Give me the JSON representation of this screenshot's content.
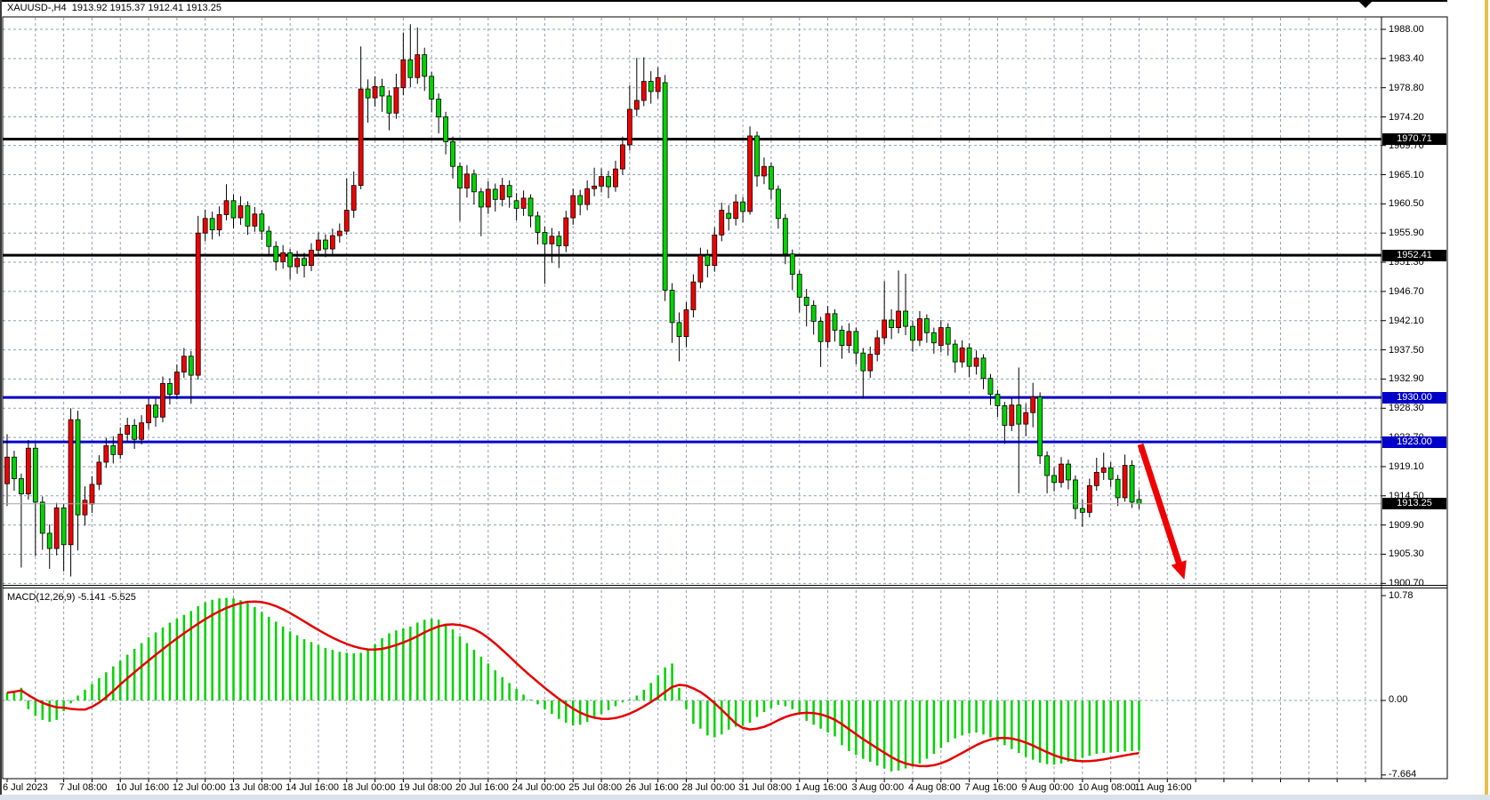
{
  "window": {
    "title": "XAUUSD-,H4  1913.92 1915.37 1912.41 1913.25"
  },
  "indicator": {
    "label": "MACD(12,26,9) -5.141 -5.525"
  },
  "macd_axis": {
    "top": "10.78",
    "zero": "0.00",
    "bottom": "-7.664"
  },
  "price_axis": {
    "labels": [
      "1988.00",
      "1983.40",
      "1978.80",
      "1974.20",
      "1969.70",
      "1965.10",
      "1960.50",
      "1955.90",
      "1951.30",
      "1946.70",
      "1942.10",
      "1937.50",
      "1932.90",
      "1928.30",
      "1923.70",
      "1919.10",
      "1914.50",
      "1909.90",
      "1905.30",
      "1900.70"
    ],
    "badges": [
      {
        "label": "1970.71",
        "price": 1970.71,
        "style": "black"
      },
      {
        "label": "1952.41",
        "price": 1952.41,
        "style": "black"
      },
      {
        "label": "1930.00",
        "price": 1930.0,
        "style": "blue"
      },
      {
        "label": "1923.00",
        "price": 1923.0,
        "style": "blue"
      },
      {
        "label": "1913.25",
        "price": 1913.25,
        "style": "black"
      }
    ]
  },
  "time_axis": {
    "labels": [
      "6 Jul 2023",
      "7 Jul 08:00",
      "10 Jul 16:00",
      "12 Jul 00:00",
      "13 Jul 08:00",
      "14 Jul 16:00",
      "18 Jul 00:00",
      "19 Jul 08:00",
      "20 Jul 16:00",
      "24 Jul 00:00",
      "25 Jul 08:00",
      "26 Jul 16:00",
      "28 Jul 00:00",
      "31 Jul 08:00",
      "1 Aug 16:00",
      "3 Aug 00:00",
      "4 Aug 08:00",
      "7 Aug 16:00",
      "9 Aug 00:00",
      "10 Aug 08:00",
      "11 Aug 16:00"
    ],
    "label_every_bars": 8
  },
  "colors": {
    "bull": "#f20000",
    "bear": "#00d400",
    "wick": "#000000",
    "grid": "#8fa0b4",
    "hline_black": "#000000",
    "hline_blue": "#0000c8",
    "macd_bar": "#00d400",
    "signal": "#e60000",
    "current_line": "#a6a6a6",
    "arrow": "#f00000",
    "badge_black": "#000000",
    "badge_blue": "#0000c8",
    "status_strip": "#d9e1eb",
    "scroll_strip": "#e6c04a"
  },
  "chart_data": {
    "type": "candlestick+macd",
    "symbol": "XAUUSD-",
    "timeframe": "H4",
    "current_quote": {
      "open": "1913.92",
      "high": "1915.37",
      "low": "1912.41",
      "close": "1913.25"
    },
    "price_range_shown": [
      1900.7,
      1988.0
    ],
    "macd_range_shown": [
      -7.664,
      10.78
    ],
    "hlines": [
      {
        "price": 1970.71,
        "color": "#000000",
        "width": 3
      },
      {
        "price": 1952.41,
        "color": "#000000",
        "width": 3
      },
      {
        "price": 1930.0,
        "color": "#0000c8",
        "width": 3
      },
      {
        "price": 1923.0,
        "color": "#0000c8",
        "width": 3
      }
    ],
    "current_price": 1913.25,
    "annotations": [
      {
        "type": "arrow",
        "color": "#f00000",
        "from": {
          "bar": 160.2,
          "price": 1922.6
        },
        "to": {
          "bar": 166.4,
          "price": 1901.3
        }
      }
    ],
    "ohlc": [
      [
        1916.4,
        1924.2,
        1912.9,
        1920.6
      ],
      [
        1920.6,
        1921.6,
        1915.3,
        1917.2
      ],
      [
        1917.2,
        1918.0,
        1903.2,
        1914.8
      ],
      [
        1914.8,
        1923.3,
        1913.9,
        1922.0
      ],
      [
        1922.0,
        1922.8,
        1905.0,
        1913.5
      ],
      [
        1913.5,
        1914.4,
        1906.0,
        1908.6
      ],
      [
        1908.6,
        1910.0,
        1903.0,
        1906.2
      ],
      [
        1906.2,
        1913.4,
        1905.1,
        1912.6
      ],
      [
        1912.6,
        1913.3,
        1902.6,
        1906.8
      ],
      [
        1906.8,
        1928.3,
        1901.8,
        1926.5
      ],
      [
        1926.5,
        1927.9,
        1905.9,
        1911.5
      ],
      [
        1911.5,
        1916.0,
        1909.8,
        1913.8
      ],
      [
        1913.2,
        1917.6,
        1911.8,
        1916.3
      ],
      [
        1916.3,
        1920.9,
        1915.4,
        1919.8
      ],
      [
        1919.8,
        1923.6,
        1918.9,
        1922.4
      ],
      [
        1922.4,
        1923.9,
        1919.6,
        1921.0
      ],
      [
        1921.0,
        1925.3,
        1920.3,
        1924.2
      ],
      [
        1924.2,
        1926.8,
        1923.1,
        1925.6
      ],
      [
        1925.6,
        1926.6,
        1921.9,
        1923.4
      ],
      [
        1923.4,
        1927.2,
        1922.6,
        1926.0
      ],
      [
        1926.0,
        1929.9,
        1925.0,
        1928.8
      ],
      [
        1928.8,
        1929.8,
        1925.4,
        1926.9
      ],
      [
        1926.9,
        1933.3,
        1926.1,
        1932.2
      ],
      [
        1932.2,
        1933.0,
        1928.9,
        1930.5
      ],
      [
        1930.5,
        1935.2,
        1929.7,
        1934.0
      ],
      [
        1934.0,
        1937.8,
        1933.1,
        1936.5
      ],
      [
        1936.5,
        1937.3,
        1929.0,
        1933.5
      ],
      [
        1933.5,
        1958.6,
        1932.8,
        1955.9
      ],
      [
        1955.9,
        1959.6,
        1954.6,
        1958.2
      ],
      [
        1958.2,
        1959.3,
        1954.9,
        1956.4
      ],
      [
        1956.4,
        1960.1,
        1955.4,
        1958.8
      ],
      [
        1958.8,
        1963.6,
        1957.9,
        1961.0
      ],
      [
        1961.0,
        1962.0,
        1956.6,
        1958.3
      ],
      [
        1958.3,
        1961.7,
        1957.2,
        1960.2
      ],
      [
        1960.2,
        1960.9,
        1955.6,
        1957.0
      ],
      [
        1957.0,
        1960.0,
        1956.1,
        1958.9
      ],
      [
        1958.9,
        1959.5,
        1954.8,
        1956.2
      ],
      [
        1956.2,
        1957.0,
        1952.4,
        1953.8
      ],
      [
        1953.8,
        1954.6,
        1950.0,
        1951.4
      ],
      [
        1951.4,
        1954.0,
        1950.3,
        1952.8
      ],
      [
        1952.8,
        1953.4,
        1948.6,
        1950.6
      ],
      [
        1950.6,
        1953.1,
        1949.5,
        1951.9
      ],
      [
        1951.9,
        1952.8,
        1948.9,
        1950.8
      ],
      [
        1950.8,
        1954.3,
        1949.9,
        1953.2
      ],
      [
        1953.2,
        1956.0,
        1952.3,
        1954.8
      ],
      [
        1954.8,
        1955.7,
        1952.1,
        1953.4
      ],
      [
        1953.4,
        1956.6,
        1952.6,
        1955.5
      ],
      [
        1955.5,
        1957.4,
        1954.4,
        1956.2
      ],
      [
        1956.2,
        1964.5,
        1955.6,
        1959.5
      ],
      [
        1959.5,
        1965.6,
        1958.3,
        1963.4
      ],
      [
        1963.4,
        1985.3,
        1962.8,
        1978.6
      ],
      [
        1978.6,
        1980.1,
        1973.3,
        1977.2
      ],
      [
        1977.2,
        1980.6,
        1975.8,
        1979.0
      ],
      [
        1979.0,
        1980.2,
        1975.0,
        1977.5
      ],
      [
        1977.5,
        1978.4,
        1972.1,
        1974.8
      ],
      [
        1974.8,
        1981.0,
        1973.9,
        1978.8
      ],
      [
        1978.8,
        1987.5,
        1977.6,
        1983.2
      ],
      [
        1983.2,
        1988.8,
        1978.9,
        1980.4
      ],
      [
        1980.4,
        1988.3,
        1979.4,
        1984.0
      ],
      [
        1984.0,
        1985.1,
        1978.3,
        1980.6
      ],
      [
        1980.6,
        1981.3,
        1974.9,
        1977.0
      ],
      [
        1977.0,
        1977.9,
        1971.6,
        1974.2
      ],
      [
        1974.2,
        1975.0,
        1968.3,
        1970.3
      ],
      [
        1970.3,
        1971.1,
        1964.5,
        1966.4
      ],
      [
        1966.4,
        1967.0,
        1957.8,
        1963.0
      ],
      [
        1963.0,
        1966.6,
        1961.5,
        1965.2
      ],
      [
        1965.2,
        1965.9,
        1960.4,
        1962.4
      ],
      [
        1962.4,
        1963.0,
        1955.4,
        1960.0
      ],
      [
        1960.0,
        1964.1,
        1958.9,
        1962.8
      ],
      [
        1962.8,
        1963.7,
        1959.3,
        1961.2
      ],
      [
        1961.2,
        1964.6,
        1960.1,
        1963.4
      ],
      [
        1963.4,
        1964.2,
        1959.9,
        1961.6
      ],
      [
        1961.0,
        1962.2,
        1957.9,
        1959.8
      ],
      [
        1959.8,
        1962.6,
        1958.6,
        1961.4
      ],
      [
        1961.4,
        1962.0,
        1956.8,
        1958.6
      ],
      [
        1958.6,
        1959.3,
        1954.1,
        1956.0
      ],
      [
        1956.0,
        1956.9,
        1947.9,
        1954.2
      ],
      [
        1954.2,
        1956.7,
        1951.2,
        1955.4
      ],
      [
        1955.4,
        1956.2,
        1950.4,
        1953.9
      ],
      [
        1953.9,
        1959.4,
        1952.9,
        1958.3
      ],
      [
        1958.3,
        1962.9,
        1957.2,
        1961.8
      ],
      [
        1961.8,
        1962.7,
        1958.7,
        1960.4
      ],
      [
        1960.4,
        1964.2,
        1959.5,
        1962.9
      ],
      [
        1962.9,
        1966.2,
        1961.7,
        1963.3
      ],
      [
        1963.3,
        1966.1,
        1962.3,
        1964.8
      ],
      [
        1964.8,
        1965.7,
        1961.4,
        1963.2
      ],
      [
        1963.2,
        1967.3,
        1962.4,
        1966.0
      ],
      [
        1966.0,
        1971.1,
        1965.1,
        1969.8
      ],
      [
        1969.8,
        1979.2,
        1968.9,
        1975.4
      ],
      [
        1975.4,
        1983.5,
        1974.3,
        1976.8
      ],
      [
        1976.8,
        1983.6,
        1975.9,
        1979.8
      ],
      [
        1979.8,
        1981.4,
        1976.3,
        1978.2
      ],
      [
        1978.2,
        1982.0,
        1977.1,
        1980.4
      ],
      [
        1979.6,
        1980.8,
        1945.2,
        1946.9
      ],
      [
        1946.9,
        1948.0,
        1938.6,
        1941.8
      ],
      [
        1941.8,
        1943.4,
        1935.7,
        1939.6
      ],
      [
        1939.6,
        1945.0,
        1937.9,
        1943.8
      ],
      [
        1943.8,
        1949.4,
        1942.6,
        1948.2
      ],
      [
        1948.2,
        1953.6,
        1947.2,
        1952.4
      ],
      [
        1952.4,
        1953.3,
        1948.9,
        1950.8
      ],
      [
        1950.8,
        1956.8,
        1949.8,
        1955.6
      ],
      [
        1955.6,
        1960.7,
        1954.6,
        1959.5
      ],
      [
        1959.0,
        1960.3,
        1956.3,
        1958.2
      ],
      [
        1958.2,
        1962.0,
        1957.1,
        1960.8
      ],
      [
        1960.8,
        1961.6,
        1957.6,
        1959.3
      ],
      [
        1959.3,
        1972.7,
        1958.8,
        1971.2
      ],
      [
        1971.2,
        1971.9,
        1963.2,
        1964.9
      ],
      [
        1964.9,
        1967.8,
        1963.6,
        1966.4
      ],
      [
        1966.4,
        1967.0,
        1961.2,
        1962.8
      ],
      [
        1962.8,
        1963.4,
        1956.6,
        1958.2
      ],
      [
        1958.2,
        1958.9,
        1951.0,
        1952.6
      ],
      [
        1952.6,
        1953.3,
        1946.9,
        1949.4
      ],
      [
        1949.4,
        1950.0,
        1943.4,
        1945.8
      ],
      [
        1945.8,
        1947.1,
        1941.2,
        1944.5
      ],
      [
        1944.5,
        1945.3,
        1939.9,
        1942.0
      ],
      [
        1942.0,
        1942.7,
        1934.8,
        1938.8
      ],
      [
        1938.8,
        1944.4,
        1937.8,
        1943.2
      ],
      [
        1943.2,
        1943.9,
        1938.8,
        1940.6
      ],
      [
        1940.6,
        1941.3,
        1936.1,
        1938.2
      ],
      [
        1938.2,
        1941.7,
        1937.0,
        1940.4
      ],
      [
        1940.4,
        1941.0,
        1935.2,
        1937.0
      ],
      [
        1937.0,
        1937.8,
        1929.8,
        1934.2
      ],
      [
        1934.2,
        1938.0,
        1933.1,
        1936.8
      ],
      [
        1936.8,
        1940.6,
        1935.7,
        1939.4
      ],
      [
        1939.4,
        1948.3,
        1938.4,
        1942.2
      ],
      [
        1942.2,
        1943.9,
        1939.2,
        1941.0
      ],
      [
        1941.0,
        1950.0,
        1940.1,
        1943.6
      ],
      [
        1943.6,
        1949.5,
        1939.8,
        1941.2
      ],
      [
        1941.2,
        1942.1,
        1937.2,
        1939.0
      ],
      [
        1939.0,
        1943.6,
        1938.1,
        1942.4
      ],
      [
        1942.4,
        1943.1,
        1938.6,
        1940.2
      ],
      [
        1940.2,
        1941.0,
        1936.9,
        1938.6
      ],
      [
        1938.2,
        1942.2,
        1937.1,
        1941.0
      ],
      [
        1941.0,
        1941.7,
        1936.6,
        1938.4
      ],
      [
        1938.4,
        1939.1,
        1933.9,
        1935.6
      ],
      [
        1935.6,
        1939.0,
        1934.7,
        1937.8
      ],
      [
        1937.8,
        1938.5,
        1933.2,
        1934.9
      ],
      [
        1934.9,
        1937.4,
        1933.6,
        1936.2
      ],
      [
        1936.2,
        1936.8,
        1931.3,
        1933.0
      ],
      [
        1933.0,
        1933.7,
        1928.8,
        1930.5
      ],
      [
        1930.5,
        1931.2,
        1926.9,
        1928.7
      ],
      [
        1928.7,
        1929.3,
        1922.7,
        1925.6
      ],
      [
        1925.6,
        1930.0,
        1924.7,
        1928.8
      ],
      [
        1928.8,
        1934.7,
        1914.9,
        1925.8
      ],
      [
        1925.8,
        1929.0,
        1923.9,
        1927.6
      ],
      [
        1927.6,
        1932.3,
        1925.3,
        1930.1
      ],
      [
        1930.1,
        1930.8,
        1919.5,
        1920.8
      ],
      [
        1920.8,
        1921.5,
        1914.9,
        1917.7
      ],
      [
        1917.7,
        1919.0,
        1915.2,
        1916.6
      ],
      [
        1916.6,
        1920.6,
        1915.8,
        1919.5
      ],
      [
        1919.5,
        1920.2,
        1915.5,
        1917.0
      ],
      [
        1917.0,
        1917.7,
        1910.8,
        1912.5
      ],
      [
        1912.5,
        1913.9,
        1909.6,
        1911.9
      ],
      [
        1911.9,
        1917.2,
        1911.1,
        1916.1
      ],
      [
        1916.1,
        1920.5,
        1915.3,
        1918.2
      ],
      [
        1918.2,
        1921.3,
        1917.0,
        1918.9
      ],
      [
        1918.9,
        1919.8,
        1915.9,
        1917.1
      ],
      [
        1917.1,
        1917.8,
        1912.9,
        1914.2
      ],
      [
        1914.2,
        1921.0,
        1913.6,
        1919.3
      ],
      [
        1919.3,
        1920.1,
        1912.6,
        1913.5
      ],
      [
        1913.92,
        1915.37,
        1912.41,
        1913.25
      ]
    ],
    "macd_histogram": [
      0.8,
      1.0,
      1.3,
      -0.9,
      -1.6,
      -2.0,
      -2.2,
      -2.0,
      -1.1,
      -0.3,
      0.5,
      1.1,
      1.7,
      2.3,
      2.9,
      3.5,
      4.1,
      4.7,
      5.3,
      5.9,
      6.5,
      7.0,
      7.5,
      8.0,
      8.4,
      8.8,
      9.2,
      9.7,
      10.1,
      10.35,
      10.5,
      10.55,
      10.5,
      10.3,
      10.0,
      9.6,
      9.1,
      8.6,
      8.1,
      7.6,
      7.1,
      6.7,
      6.3,
      6.0,
      5.7,
      5.4,
      5.2,
      5.0,
      4.9,
      4.85,
      4.9,
      5.3,
      5.8,
      6.4,
      6.9,
      7.2,
      7.4,
      7.6,
      8.0,
      8.3,
      8.4,
      8.3,
      7.9,
      7.3,
      6.6,
      5.9,
      5.2,
      4.5,
      3.8,
      3.1,
      2.4,
      1.8,
      1.2,
      0.6,
      0.1,
      -0.4,
      -0.9,
      -1.4,
      -1.9,
      -2.3,
      -2.55,
      -2.5,
      -2.2,
      -1.8,
      -1.4,
      -1.0,
      -0.6,
      -0.2,
      0.1,
      0.5,
      1.1,
      1.8,
      2.6,
      3.4,
      3.8,
      1.3,
      -0.9,
      -2.4,
      -2.9,
      -3.6,
      -3.8,
      -3.5,
      -3.0,
      -2.7,
      -2.6,
      -2.3,
      -1.7,
      -1.2,
      -0.8,
      -0.45,
      -0.6,
      -0.9,
      -1.4,
      -2.1,
      -2.5,
      -2.9,
      -3.3,
      -3.7,
      -4.6,
      -5.2,
      -5.6,
      -6.0,
      -6.3,
      -6.7,
      -7.0,
      -7.3,
      -7.2,
      -7.0,
      -6.8,
      -6.5,
      -6.0,
      -5.5,
      -4.9,
      -4.3,
      -3.9,
      -3.6,
      -3.4,
      -3.3,
      -3.5,
      -3.8,
      -4.2,
      -4.6,
      -5.0,
      -5.4,
      -5.8,
      -6.1,
      -6.4,
      -6.55,
      -6.6,
      -6.5,
      -6.3,
      -6.1,
      -5.9,
      -5.7,
      -5.5,
      -5.4,
      -5.35,
      -5.3,
      -5.25,
      -5.2,
      -5.141
    ],
    "macd_values_shown": {
      "main": -5.141,
      "signal": -5.525
    },
    "signal_method": "SMA9 of macd_histogram"
  }
}
